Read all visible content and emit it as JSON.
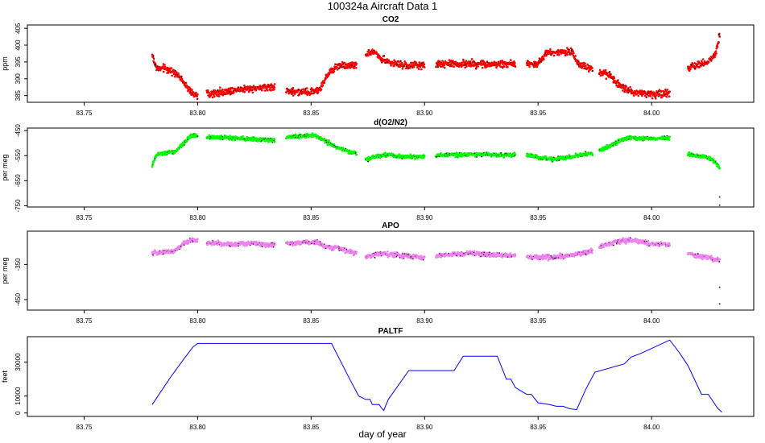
{
  "figure_title": "100324a   Aircraft Data 1",
  "x_axis_label": "day of year",
  "chart_data": [
    {
      "type": "scatter",
      "title": "CO2",
      "ylabel": "ppm",
      "color": "#ff0000",
      "xlim": [
        83.725,
        84.045
      ],
      "ylim": [
        383,
        406
      ],
      "x_ticks": [
        83.75,
        83.8,
        83.85,
        83.9,
        83.95,
        84.0
      ],
      "x_tick_labels": [
        "83.75",
        "83.80",
        "83.85",
        "83.90",
        "83.95",
        "84.00"
      ],
      "y_ticks": [
        385,
        390,
        395,
        400,
        405
      ],
      "y_tick_labels": [
        "385",
        "390",
        "395",
        "400",
        "405"
      ],
      "jitter": 0.8,
      "segments": [
        {
          "x": [
            83.78,
            83.782,
            83.786,
            83.79,
            83.794,
            83.797,
            83.8
          ],
          "y": [
            397,
            393,
            393,
            392,
            389,
            386,
            385
          ]
        },
        {
          "x": [
            83.804,
            83.81,
            83.82,
            83.83,
            83.834
          ],
          "y": [
            385.5,
            386,
            387,
            387.5,
            387.5
          ]
        },
        {
          "x": [
            83.839,
            83.845,
            83.85,
            83.854,
            83.858,
            83.862,
            83.87
          ],
          "y": [
            386.5,
            386,
            386,
            387,
            392,
            394,
            394
          ]
        },
        {
          "x": [
            83.874,
            83.878,
            83.881,
            83.884,
            83.89,
            83.9
          ],
          "y": [
            397,
            398,
            396,
            395,
            394,
            394
          ]
        },
        {
          "x": [
            83.905,
            83.92,
            83.94
          ],
          "y": [
            394.3,
            394.5,
            394.3
          ]
        },
        {
          "x": [
            83.945,
            83.95,
            83.954,
            83.96,
            83.965,
            83.968,
            83.974
          ],
          "y": [
            394.5,
            394.5,
            398,
            398,
            398,
            394,
            393
          ]
        },
        {
          "x": [
            83.977,
            83.982,
            83.986,
            83.992,
            84.0,
            84.008
          ],
          "y": [
            392,
            391,
            388,
            386,
            385.5,
            385.5
          ]
        },
        {
          "x": [
            84.016,
            84.02,
            84.025,
            84.028,
            84.03
          ],
          "y": [
            393,
            394,
            395,
            397,
            403
          ]
        }
      ]
    },
    {
      "type": "scatter",
      "title": "d(O2/N2)",
      "ylabel": "per meg",
      "color": "#00ff00",
      "xlim": [
        83.725,
        84.045
      ],
      "ylim": [
        -755,
        -440
      ],
      "x_ticks": [
        83.75,
        83.8,
        83.85,
        83.9,
        83.95,
        84.0
      ],
      "x_tick_labels": [
        "83.75",
        "83.80",
        "83.85",
        "83.90",
        "83.95",
        "84.00"
      ],
      "y_ticks": [
        -450,
        -550,
        -650,
        -750
      ],
      "y_tick_labels": [
        "-450",
        "-550",
        "-650",
        "-750"
      ],
      "jitter": 6,
      "segments": [
        {
          "x": [
            83.78,
            83.782,
            83.786,
            83.79,
            83.794,
            83.797,
            83.8
          ],
          "y": [
            -590,
            -545,
            -540,
            -535,
            -500,
            -470,
            -470
          ]
        },
        {
          "x": [
            83.804,
            83.815,
            83.825,
            83.834
          ],
          "y": [
            -475,
            -480,
            -485,
            -488
          ]
        },
        {
          "x": [
            83.839,
            83.845,
            83.852,
            83.856,
            83.862,
            83.866,
            83.87
          ],
          "y": [
            -475,
            -473,
            -470,
            -490,
            -520,
            -532,
            -540
          ]
        },
        {
          "x": [
            83.874,
            83.88,
            83.884,
            83.89,
            83.9
          ],
          "y": [
            -565,
            -550,
            -545,
            -555,
            -553
          ]
        },
        {
          "x": [
            83.905,
            83.92,
            83.94
          ],
          "y": [
            -548,
            -545,
            -548
          ]
        },
        {
          "x": [
            83.945,
            83.955,
            83.962,
            83.968,
            83.974
          ],
          "y": [
            -548,
            -565,
            -560,
            -548,
            -540
          ]
        },
        {
          "x": [
            83.977,
            83.982,
            83.986,
            83.99,
            84.0,
            84.008
          ],
          "y": [
            -530,
            -510,
            -490,
            -480,
            -482,
            -482
          ]
        },
        {
          "x": [
            84.016,
            84.02,
            84.025,
            84.028,
            84.03
          ],
          "y": [
            -545,
            -550,
            -560,
            -575,
            -600
          ]
        }
      ],
      "outliers": [
        {
          "x": 84.03,
          "y": -715
        },
        {
          "x": 84.03,
          "y": -748
        }
      ]
    },
    {
      "type": "scatter",
      "title": "APO",
      "ylabel": "per meg",
      "color": "#ee82ee",
      "xlim": [
        83.725,
        84.045
      ],
      "ylim": [
        -480,
        -255
      ],
      "x_ticks": [
        83.75,
        83.8,
        83.85,
        83.9,
        83.95,
        84.0
      ],
      "x_tick_labels": [
        "83.75",
        "83.80",
        "83.85",
        "83.90",
        "83.95",
        "84.00"
      ],
      "y_ticks": [
        -350,
        -450
      ],
      "y_tick_labels": [
        "-350",
        "-450"
      ],
      "jitter": 5,
      "segments": [
        {
          "x": [
            83.78,
            83.782,
            83.786,
            83.79,
            83.794,
            83.797,
            83.8
          ],
          "y": [
            -320,
            -315,
            -315,
            -310,
            -290,
            -280,
            -282
          ]
        },
        {
          "x": [
            83.804,
            83.815,
            83.825,
            83.834
          ],
          "y": [
            -288,
            -292,
            -290,
            -295
          ]
        },
        {
          "x": [
            83.839,
            83.845,
            83.852,
            83.856,
            83.862,
            83.866,
            83.87
          ],
          "y": [
            -290,
            -288,
            -285,
            -300,
            -303,
            -312,
            -318
          ]
        },
        {
          "x": [
            83.874,
            83.88,
            83.89,
            83.9
          ],
          "y": [
            -330,
            -318,
            -325,
            -330
          ]
        },
        {
          "x": [
            83.905,
            83.92,
            83.94
          ],
          "y": [
            -325,
            -318,
            -325
          ]
        },
        {
          "x": [
            83.945,
            83.955,
            83.962,
            83.968,
            83.974
          ],
          "y": [
            -328,
            -330,
            -325,
            -320,
            -312
          ]
        },
        {
          "x": [
            83.977,
            83.982,
            83.986,
            83.99,
            84.0,
            84.008
          ],
          "y": [
            -300,
            -290,
            -285,
            -280,
            -292,
            -293
          ]
        },
        {
          "x": [
            84.016,
            84.02,
            84.025,
            84.028,
            84.03
          ],
          "y": [
            -318,
            -325,
            -330,
            -335,
            -338
          ]
        }
      ],
      "outliers": [
        {
          "x": 84.03,
          "y": -415
        },
        {
          "x": 84.03,
          "y": -462
        }
      ]
    },
    {
      "type": "line",
      "title": "PALTF",
      "ylabel": "feet",
      "color": "#0000ff",
      "xlim": [
        83.725,
        84.045
      ],
      "ylim": [
        -2000,
        45000
      ],
      "x_ticks": [
        83.75,
        83.8,
        83.85,
        83.9,
        83.95,
        84.0
      ],
      "x_tick_labels": [
        "83.75",
        "83.80",
        "83.85",
        "83.90",
        "83.95",
        "84.00"
      ],
      "y_ticks": [
        0,
        10000,
        30000
      ],
      "y_tick_labels": [
        "0",
        "10000",
        "30000"
      ],
      "x": [
        83.78,
        83.782,
        83.788,
        83.794,
        83.798,
        83.8,
        83.859,
        83.867,
        83.871,
        83.874,
        83.876,
        83.877,
        83.88,
        83.881,
        83.882,
        83.884,
        83.893,
        83.913,
        83.917,
        83.932,
        83.936,
        83.938,
        83.94,
        83.945,
        83.947,
        83.95,
        83.955,
        83.958,
        83.961,
        83.964,
        83.967,
        83.971,
        83.975,
        83.988,
        83.991,
        83.995,
        84.008,
        84.012,
        84.016,
        84.022,
        84.025,
        84.029,
        84.031
      ],
      "y": [
        5000,
        9000,
        21000,
        32000,
        39000,
        41000,
        41000,
        20000,
        10000,
        8000,
        8000,
        5000,
        5000,
        3000,
        1500,
        8000,
        25000,
        25000,
        33500,
        33500,
        20000,
        20000,
        15000,
        11000,
        11000,
        6000,
        5000,
        4000,
        4000,
        2500,
        2000,
        14000,
        24000,
        29000,
        33000,
        35000,
        43000,
        36000,
        28000,
        11000,
        11000,
        3000,
        500
      ]
    }
  ]
}
